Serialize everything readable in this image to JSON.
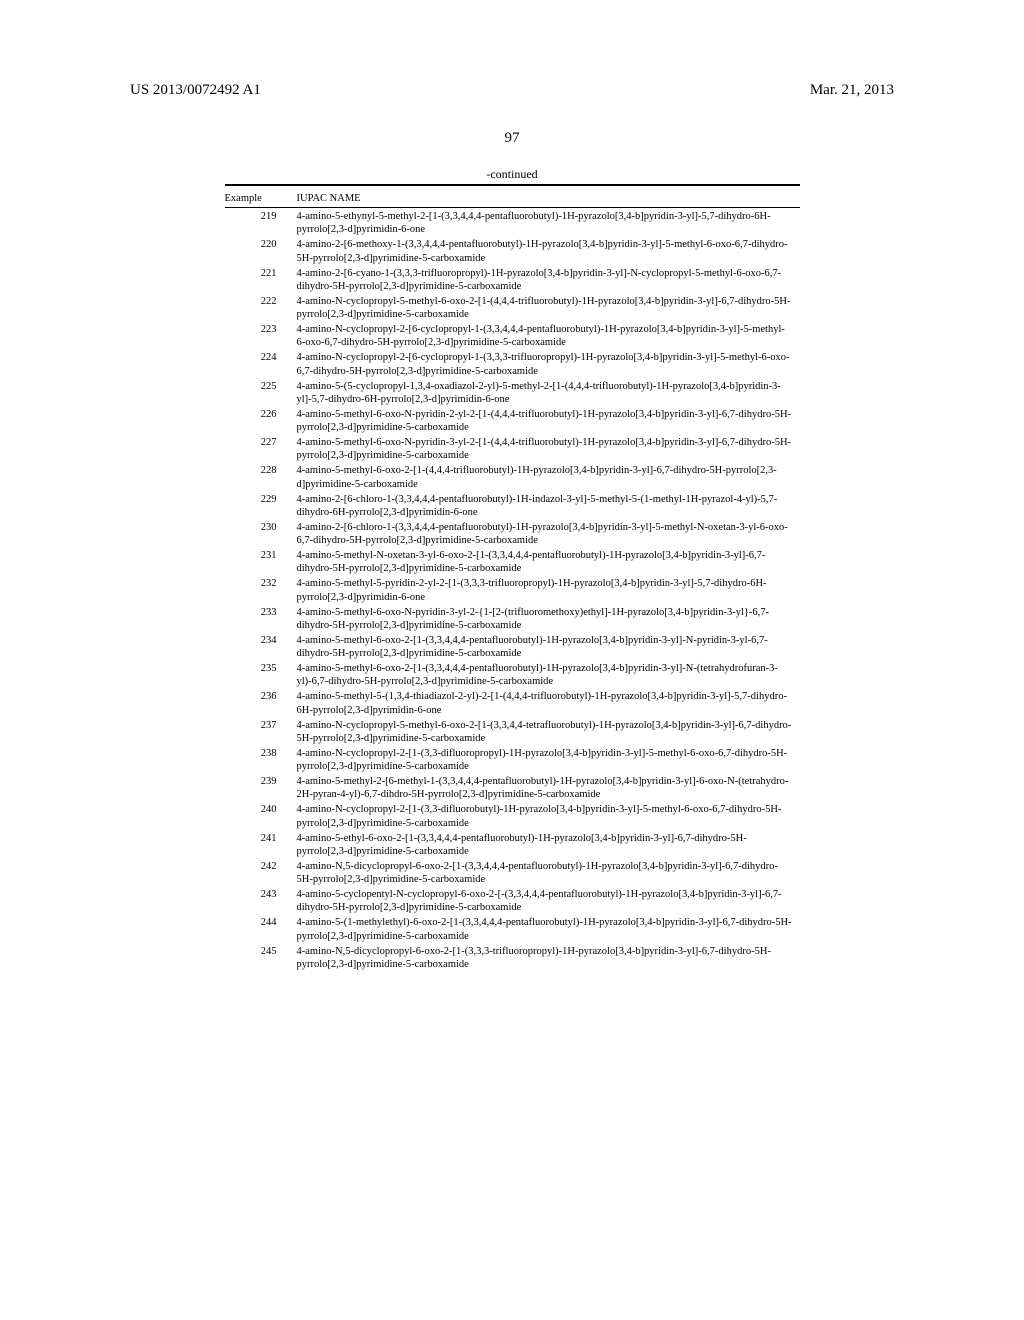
{
  "header": {
    "doc_number": "US 2013/0072492 A1",
    "date": "Mar. 21, 2013"
  },
  "page_number": "97",
  "continued_label": "-continued",
  "columns": {
    "example": "Example",
    "iupac": "IUPAC NAME"
  },
  "rows": [
    {
      "n": "219",
      "name": "4-amino-5-ethynyl-5-methyl-2-[1-(3,3,4,4,4-pentafluorobutyl)-1H-pyrazolo[3,4-b]pyridin-3-yl]-5,7-dihydro-6H-pyrrolo[2,3-d]pyrimidin-6-one"
    },
    {
      "n": "220",
      "name": "4-amino-2-[6-methoxy-1-(3,3,4,4,4-pentafluorobutyl)-1H-pyrazolo[3,4-b]pyridin-3-yl]-5-methyl-6-oxo-6,7-dihydro-5H-pyrrolo[2,3-d]pyrimidine-5-carboxamide"
    },
    {
      "n": "221",
      "name": "4-amino-2-[6-cyano-1-(3,3,3-trifluoropropyl)-1H-pyrazolo[3,4-b]pyridin-3-yl]-N-cyclopropyl-5-methyl-6-oxo-6,7-dihydro-5H-pyrrolo[2,3-d]pyrimidine-5-carboxamide"
    },
    {
      "n": "222",
      "name": "4-amino-N-cyclopropyl-5-methyl-6-oxo-2-[1-(4,4,4-trifluorobutyl)-1H-pyrazolo[3,4-b]pyridin-3-yl]-6,7-dihydro-5H-pyrrolo[2,3-d]pyrimidine-5-carboxamide"
    },
    {
      "n": "223",
      "name": "4-amino-N-cyclopropyl-2-[6-cyclopropyl-1-(3,3,4,4,4-pentafluorobutyl)-1H-pyrazolo[3,4-b]pyridin-3-yl]-5-methyl-6-oxo-6,7-dihydro-5H-pyrrolo[2,3-d]pyrimidine-5-carboxamide"
    },
    {
      "n": "224",
      "name": "4-amino-N-cyclopropyl-2-[6-cyclopropyl-1-(3,3,3-trifluoropropyl)-1H-pyrazolo[3,4-b]pyridin-3-yl]-5-methyl-6-oxo-6,7-dihydro-5H-pyrrolo[2,3-d]pyrimidine-5-carboxamide"
    },
    {
      "n": "225",
      "name": "4-amino-5-(5-cyclopropyl-1,3,4-oxadiazol-2-yl)-5-methyl-2-[1-(4,4,4-trifluorobutyl)-1H-pyrazolo[3,4-b]pyridin-3-yl]-5,7-dihydro-6H-pyrrolo[2,3-d]pyrimidin-6-one"
    },
    {
      "n": "226",
      "name": "4-amino-5-methyl-6-oxo-N-pyridin-2-yl-2-[1-(4,4,4-trifluorobutyl)-1H-pyrazolo[3,4-b]pyridin-3-yl]-6,7-dihydro-5H-pyrrolo[2,3-d]pyrimidine-5-carboxamide"
    },
    {
      "n": "227",
      "name": "4-amino-5-methyl-6-oxo-N-pyridin-3-yl-2-[1-(4,4,4-trifluorobutyl)-1H-pyrazolo[3,4-b]pyridin-3-yl]-6,7-dihydro-5H-pyrrolo[2,3-d]pyrimidine-5-carboxamide"
    },
    {
      "n": "228",
      "name": "4-amino-5-methyl-6-oxo-2-[1-(4,4,4-trifluorobutyl)-1H-pyrazolo[3,4-b]pyridin-3-yl]-6,7-dihydro-5H-pyrrolo[2,3-d]pyrimidine-5-carboxamide"
    },
    {
      "n": "229",
      "name": "4-amino-2-[6-chloro-1-(3,3,4,4,4-pentafluorobutyl)-1H-indazol-3-yl]-5-methyl-5-(1-methyl-1H-pyrazol-4-yl)-5,7-dihydro-6H-pyrrolo[2,3-d]pyrimidin-6-one"
    },
    {
      "n": "230",
      "name": "4-amino-2-[6-chloro-1-(3,3,4,4,4-pentafluorobutyl)-1H-pyrazolo[3,4-b]pyridin-3-yl]-5-methyl-N-oxetan-3-yl-6-oxo-6,7-dihydro-5H-pyrrolo[2,3-d]pyrimidine-5-carboxamide"
    },
    {
      "n": "231",
      "name": "4-amino-5-methyl-N-oxetan-3-yl-6-oxo-2-[1-(3,3,4,4,4-pentafluorobutyl)-1H-pyrazolo[3,4-b]pyridin-3-yl]-6,7-dihydro-5H-pyrrolo[2,3-d]pyrimidine-5-carboxamide"
    },
    {
      "n": "232",
      "name": "4-amino-5-methyl-5-pyridin-2-yl-2-[1-(3,3,3-trifluoropropyl)-1H-pyrazolo[3,4-b]pyridin-3-yl]-5,7-dihydro-6H-pyrrolo[2,3-d]pyrimidin-6-one"
    },
    {
      "n": "233",
      "name": "4-amino-5-methyl-6-oxo-N-pyridin-3-yl-2-{1-[2-(trifluoromethoxy)ethyl]-1H-pyrazolo[3,4-b]pyridin-3-yl}-6,7-dihydro-5H-pyrrolo[2,3-d]pyrimidine-5-carboxamide"
    },
    {
      "n": "234",
      "name": "4-amino-5-methyl-6-oxo-2-[1-(3,3,4,4,4-pentafluorobutyl)-1H-pyrazolo[3,4-b]pyridin-3-yl]-N-pyridin-3-yl-6,7-dihydro-5H-pyrrolo[2,3-d]pyrimidine-5-carboxamide"
    },
    {
      "n": "235",
      "name": "4-amino-5-methyl-6-oxo-2-[1-(3,3,4,4,4-pentafluorobutyl)-1H-pyrazolo[3,4-b]pyridin-3-yl]-N-(tetrahydrofuran-3-yl)-6,7-dihydro-5H-pyrrolo[2,3-d]pyrimidine-5-carboxamide"
    },
    {
      "n": "236",
      "name": "4-amino-5-methyl-5-(1,3,4-thiadiazol-2-yl)-2-[1-(4,4,4-trifluorobutyl)-1H-pyrazolo[3,4-b]pyridin-3-yl]-5,7-dihydro-6H-pyrrolo[2,3-d]pyrimidin-6-one"
    },
    {
      "n": "237",
      "name": "4-amino-N-cyclopropyl-5-methyl-6-oxo-2-[1-(3,3,4,4-tetrafluorobutyl)-1H-pyrazolo[3,4-b]pyridin-3-yl]-6,7-dihydro-5H-pyrrolo[2,3-d]pyrimidine-5-carboxamide"
    },
    {
      "n": "238",
      "name": "4-amino-N-cyclopropyl-2-[1-(3,3-difluoropropyl)-1H-pyrazolo[3,4-b]pyridin-3-yl]-5-methyl-6-oxo-6,7-dihydro-5H-pyrrolo[2,3-d]pyrimidine-5-carboxamide"
    },
    {
      "n": "239",
      "name": "4-amino-5-methyl-2-[6-methyl-1-(3,3,4,4,4-pentafluorobutyl)-1H-pyrazolo[3,4-b]pyridin-3-yl]-6-oxo-N-(tetrahydro-2H-pyran-4-yl)-6,7-dihdro-5H-pyrrolo[2,3-d]pyrimidine-5-carboxamide"
    },
    {
      "n": "240",
      "name": "4-amino-N-cyclopropyl-2-[1-(3,3-difluorobutyl)-1H-pyrazolo[3,4-b]pyridin-3-yl]-5-methyl-6-oxo-6,7-dihydro-5H-pyrrolo[2,3-d]pyrimidine-5-carboxamide"
    },
    {
      "n": "241",
      "name": "4-amino-5-ethyl-6-oxo-2-[1-(3,3,4,4,4-pentafluorobutyl)-1H-pyrazolo[3,4-b]pyridin-3-yl]-6,7-dihydro-5H-pyrrolo[2,3-d]pyrimidine-5-carboxamide"
    },
    {
      "n": "242",
      "name": "4-amino-N,5-dicyclopropyl-6-oxo-2-[1-(3,3,4,4,4-pentafluorobutyl)-1H-pyrazolo[3,4-b]pyridin-3-yl]-6,7-dihydro-5H-pyrrolo[2,3-d]pyrimidine-5-carboxamide"
    },
    {
      "n": "243",
      "name": "4-amino-5-cyclopentyl-N-cyclopropyl-6-oxo-2-[-(3,3,4,4,4-pentafluorobutyl)-1H-pyrazolo[3,4-b]pyridin-3-yl]-6,7-dihydro-5H-pyrrolo[2,3-d]pyrimidine-5-carboxamide"
    },
    {
      "n": "244",
      "name": "4-amino-5-(1-methylethyl)-6-oxo-2-[1-(3,3,4,4,4-pentafluorobutyl)-1H-pyrazolo[3,4-b]pyridin-3-yl]-6,7-dihydro-5H-pyrrolo[2,3-d]pyrimidine-5-carboxamide"
    },
    {
      "n": "245",
      "name": "4-amino-N,5-dicyclopropyl-6-oxo-2-[1-(3,3,3-trifluoropropyl)-1H-pyrazolo[3,4-b]pyridin-3-yl]-6,7-dihydro-5H-pyrrolo[2,3-d]pyrimidine-5-carboxamide"
    }
  ]
}
